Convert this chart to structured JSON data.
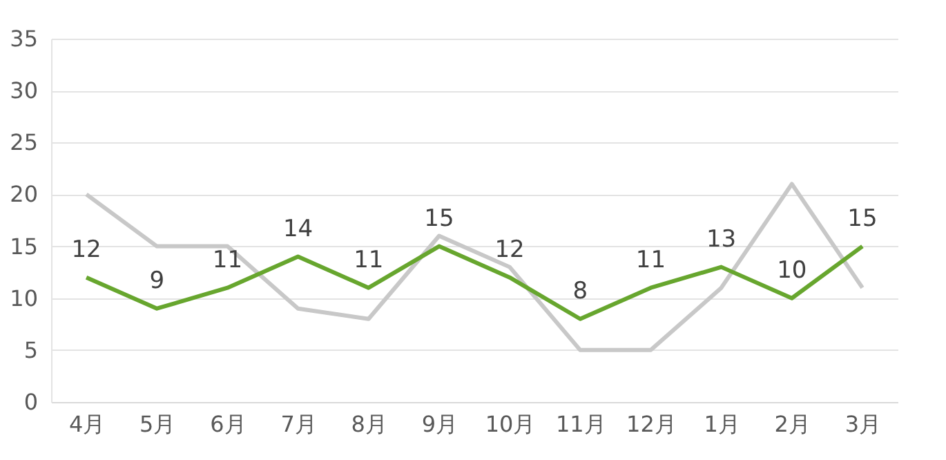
{
  "chart_data": {
    "type": "line",
    "categories": [
      "4月",
      "5月",
      "6月",
      "7月",
      "8月",
      "9月",
      "10月",
      "11月",
      "12月",
      "1月",
      "2月",
      "3月"
    ],
    "series": [
      {
        "color": "#c8c8c8",
        "values": [
          20,
          15,
          15,
          9,
          8,
          16,
          13,
          5,
          5,
          11,
          21,
          11
        ],
        "data_labels": false
      },
      {
        "color": "#67a62e",
        "values": [
          12,
          9,
          11,
          14,
          11,
          15,
          12,
          8,
          11,
          13,
          10,
          15
        ],
        "data_labels": true
      }
    ],
    "ylim": [
      0,
      35
    ],
    "yticks": [
      0,
      5,
      10,
      15,
      20,
      25,
      30,
      35
    ],
    "grid": "y",
    "marker": "none",
    "line_style": "solid"
  }
}
